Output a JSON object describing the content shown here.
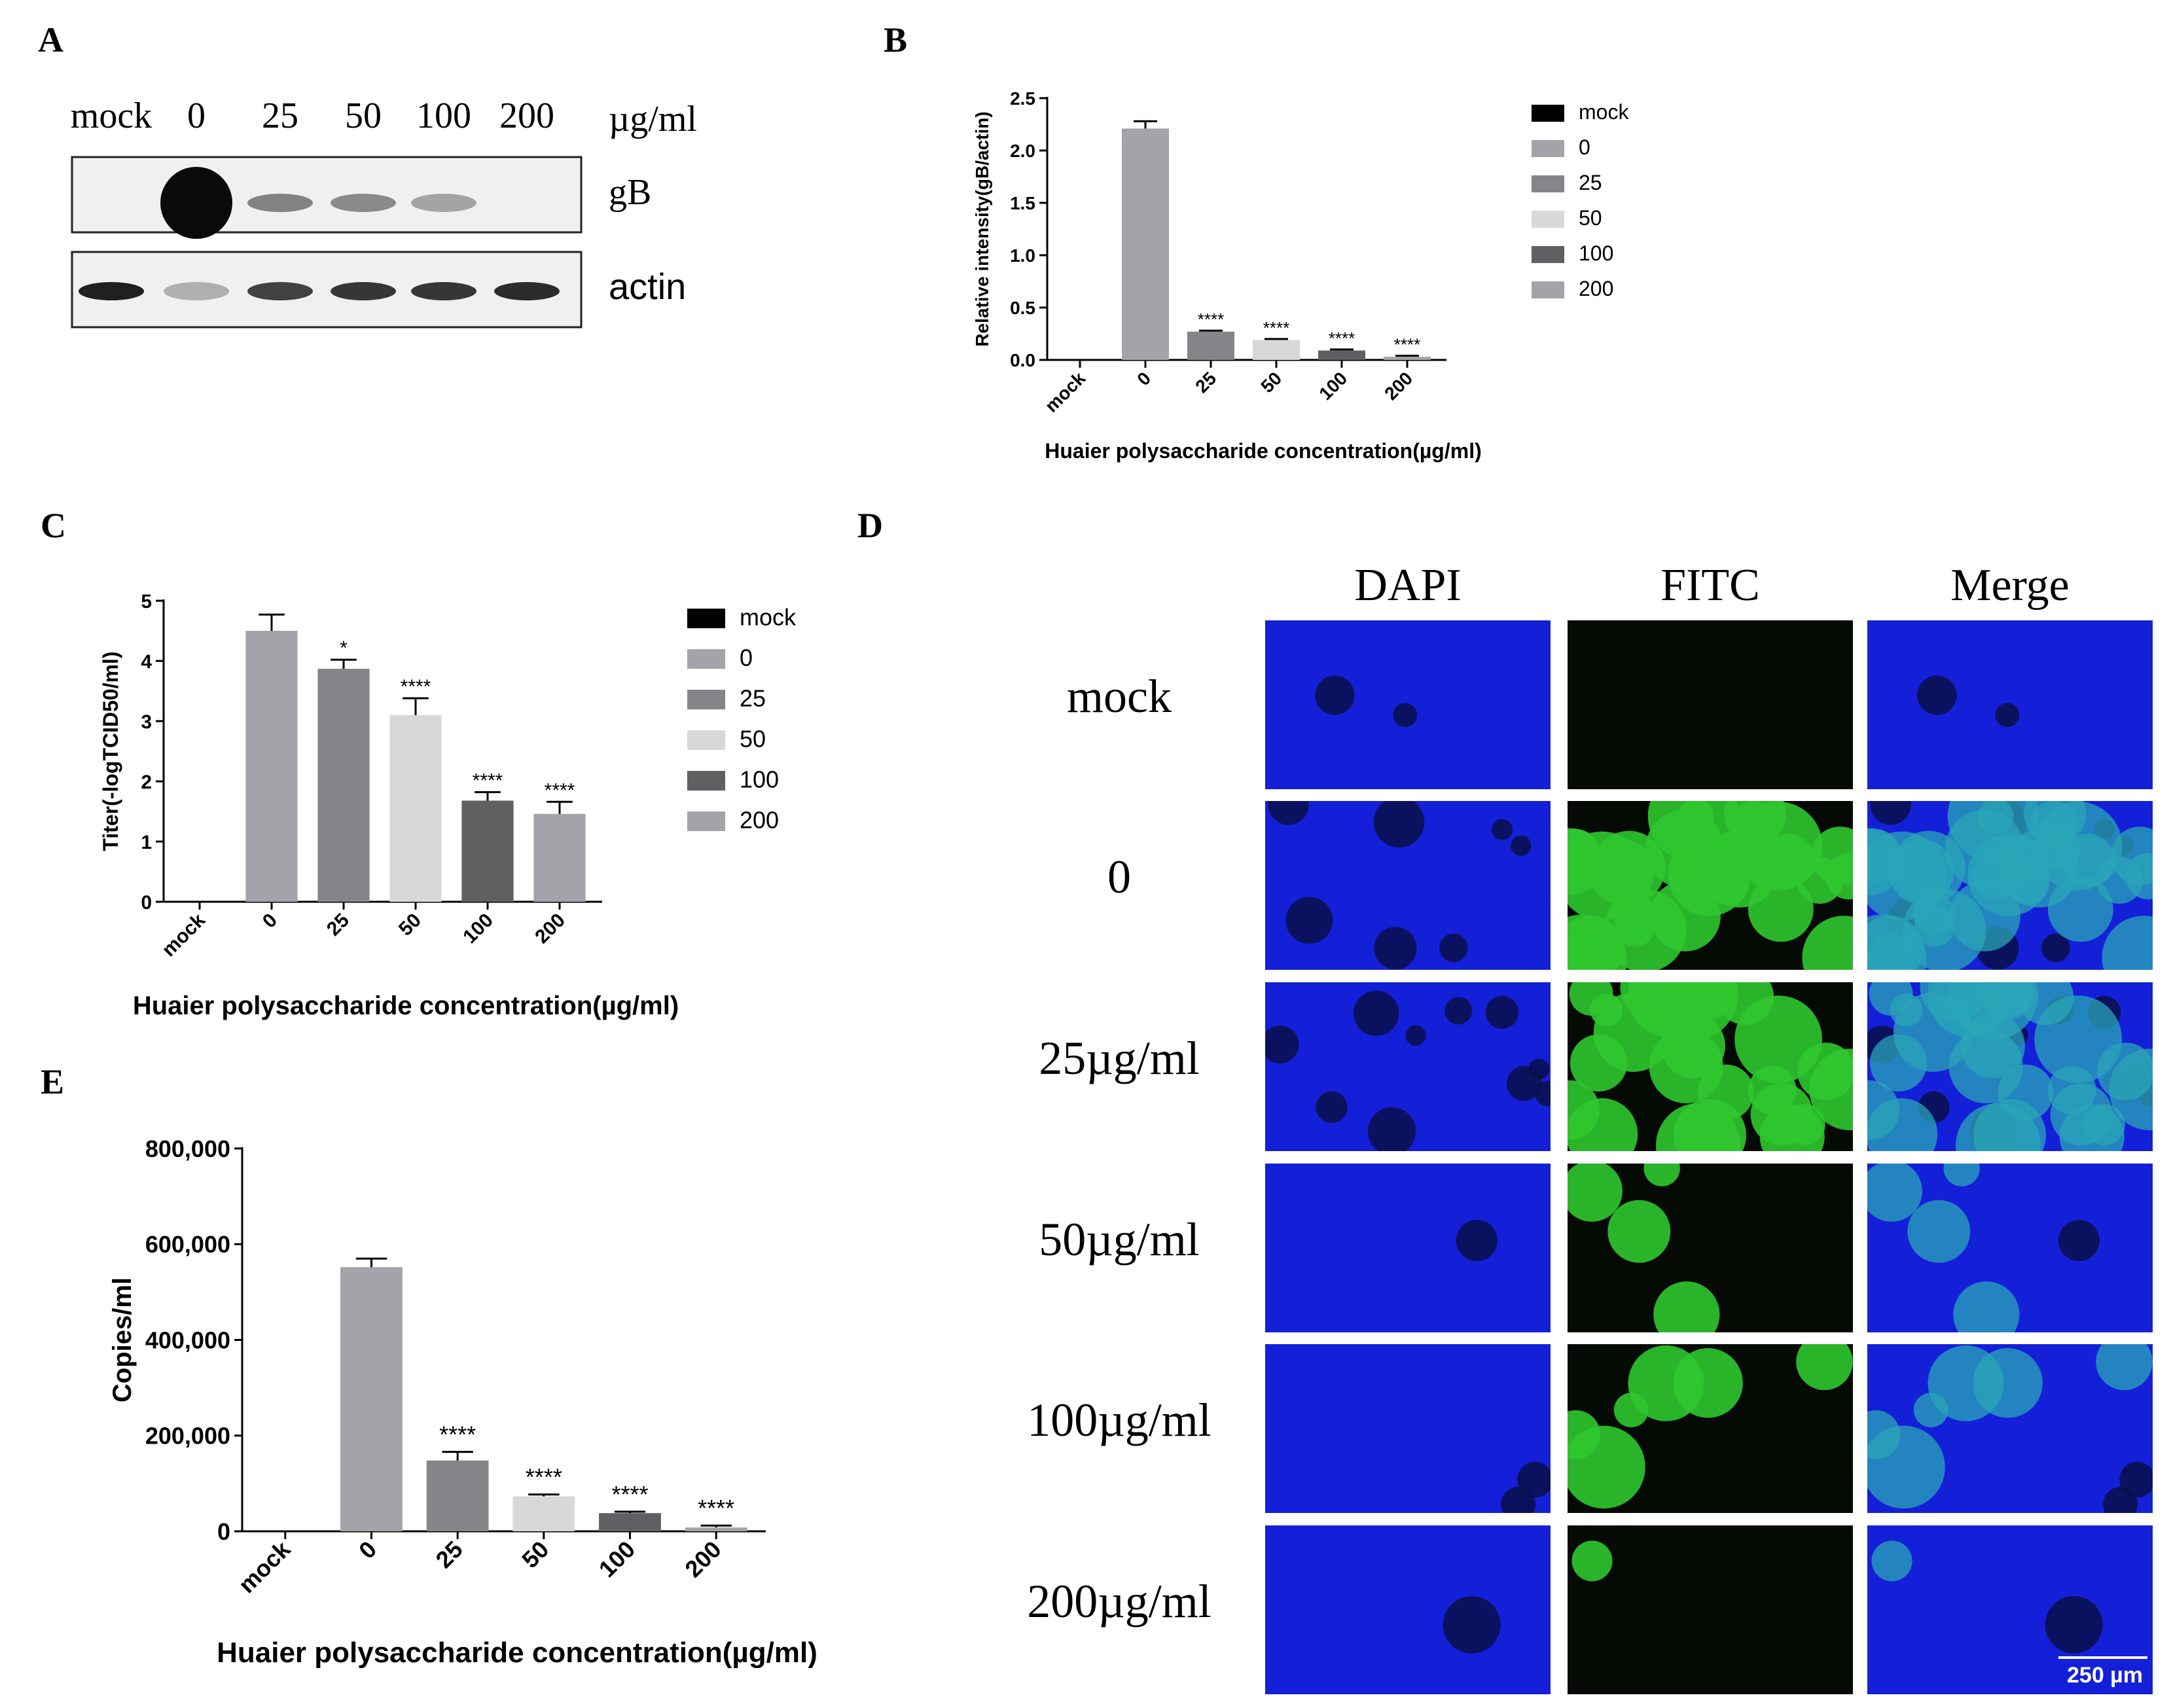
{
  "panels": {
    "A": "A",
    "B": "B",
    "C": "C",
    "D": "D",
    "E": "E"
  },
  "western_blot": {
    "lanes": [
      "mock",
      "0",
      "25",
      "50",
      "100",
      "200"
    ],
    "unit": "µg/ml",
    "bands": [
      {
        "label": "gB",
        "intensity": [
          0.0,
          1.0,
          0.45,
          0.42,
          0.3,
          0.0
        ]
      },
      {
        "label": "actin",
        "intensity": [
          0.9,
          0.25,
          0.75,
          0.8,
          0.8,
          0.85
        ]
      }
    ]
  },
  "chart_data": [
    {
      "panel": "B",
      "type": "bar",
      "ylabel": "Relative intensity(gB/actin)",
      "xlabel": "Huaier polysaccharide concentration(µg/ml)",
      "categories": [
        "mock",
        "0",
        "25",
        "50",
        "100",
        "200"
      ],
      "values": [
        0,
        2.21,
        0.27,
        0.19,
        0.09,
        0.03
      ],
      "errors": [
        0,
        0.07,
        0.01,
        0.01,
        0.01,
        0.01
      ],
      "significance": [
        "",
        "",
        "****",
        "****",
        "****",
        "****"
      ],
      "ylim": [
        0,
        2.5
      ],
      "yticks": [
        0,
        0.5,
        1.0,
        1.5,
        2.0,
        2.5
      ],
      "ytick_labels": [
        "0.0",
        "0.5",
        "1.0",
        "1.5",
        "2.0",
        "2.5"
      ],
      "legend": [
        "mock",
        "0",
        "25",
        "50",
        "100",
        "200"
      ],
      "legend_position": "right",
      "colors": [
        "#000000",
        "#a4a3aa",
        "#858489",
        "#d8d8d8",
        "#606062",
        "#a4a3aa"
      ]
    },
    {
      "panel": "C",
      "type": "bar",
      "ylabel": "Titer(-logTCID50/ml)",
      "xlabel": "Huaier polysaccharide concentration(µg/ml)",
      "categories": [
        "mock",
        "0",
        "25",
        "50",
        "100",
        "200"
      ],
      "values": [
        0,
        4.5,
        3.87,
        3.1,
        1.68,
        1.46
      ],
      "errors": [
        0,
        0.27,
        0.15,
        0.28,
        0.14,
        0.2
      ],
      "significance": [
        "",
        "",
        "*",
        "****",
        "****",
        "****"
      ],
      "ylim": [
        0,
        5
      ],
      "yticks": [
        0,
        1,
        2,
        3,
        4,
        5
      ],
      "ytick_labels": [
        "0",
        "1",
        "2",
        "3",
        "4",
        "5"
      ],
      "legend": [
        "mock",
        "0",
        "25",
        "50",
        "100",
        "200"
      ],
      "legend_position": "right",
      "colors": [
        "#000000",
        "#a4a3aa",
        "#858489",
        "#d8d8d8",
        "#606062",
        "#a4a3aa"
      ]
    },
    {
      "panel": "E",
      "type": "bar",
      "ylabel": "Copies/ml",
      "xlabel": "Huaier polysaccharide concentration(µg/ml)",
      "categories": [
        "mock",
        "0",
        "25",
        "50",
        "100",
        "200"
      ],
      "values": [
        0,
        552000,
        148000,
        73000,
        38000,
        8000
      ],
      "errors": [
        0,
        18000,
        18000,
        4000,
        3000,
        4000
      ],
      "significance": [
        "",
        "",
        "****",
        "****",
        "****",
        "****"
      ],
      "ylim": [
        0,
        800000
      ],
      "yticks": [
        0,
        200000,
        400000,
        600000,
        800000
      ],
      "ytick_labels": [
        "0",
        "200,000",
        "400,000",
        "600,000",
        "800,000"
      ],
      "colors": [
        "#000000",
        "#a4a3aa",
        "#858489",
        "#d8d8d8",
        "#606062",
        "#a4a3aa"
      ]
    }
  ],
  "fluorescence": {
    "columns": [
      "DAPI",
      "FITC",
      "Merge"
    ],
    "rows": [
      "mock",
      "0",
      "25µg/ml",
      "50µg/ml",
      "100µg/ml",
      "200µg/ml"
    ],
    "scale_bar": "250 µm",
    "colors": {
      "dapi": "#1420d8",
      "fitc": "#2fc62f",
      "merge_tint": "#2aa6b8"
    }
  }
}
